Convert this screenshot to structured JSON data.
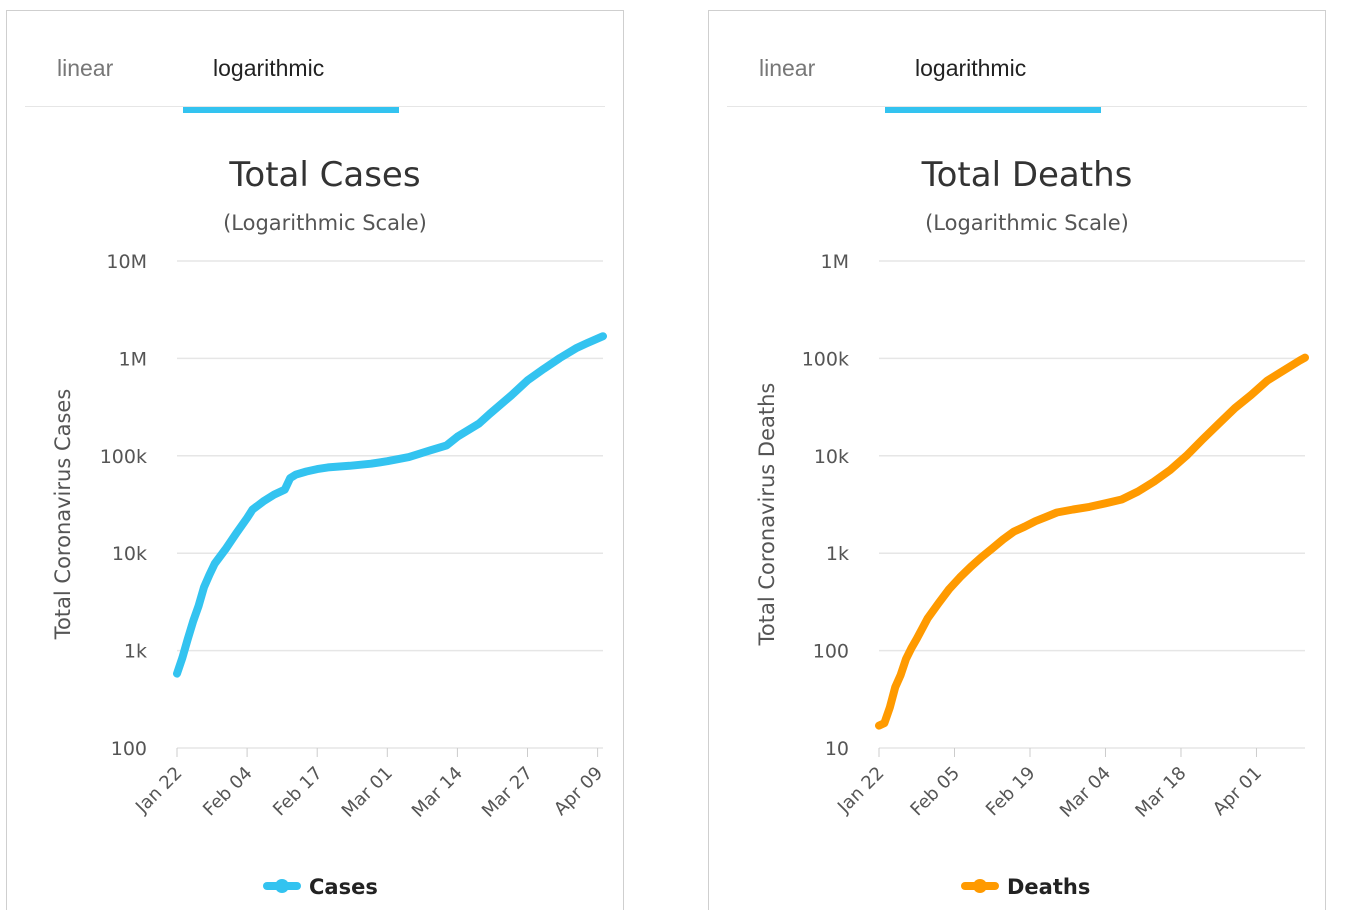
{
  "tabs": {
    "linear_label": "linear",
    "log_label": "logarithmic",
    "accent": "#33c3f0"
  },
  "chart_data": [
    {
      "type": "line",
      "title": "Total Cases",
      "subtitle": "(Logarithmic Scale)",
      "ylabel": "Total Coronavirus Cases",
      "scale": "log",
      "ylim": [
        100,
        10000000
      ],
      "yticks": [
        100,
        1000,
        10000,
        100000,
        1000000,
        10000000
      ],
      "ytick_labels": [
        "100",
        "1k",
        "10k",
        "100k",
        "1M",
        "10M"
      ],
      "xlim": [
        "2020-01-22",
        "2020-04-10"
      ],
      "xtick_labels": [
        "Jan 22",
        "Feb 04",
        "Feb 17",
        "Mar 01",
        "Mar 14",
        "Mar 27",
        "Apr 09"
      ],
      "xtick_dates": [
        "2020-01-22",
        "2020-02-04",
        "2020-02-17",
        "2020-03-01",
        "2020-03-14",
        "2020-03-27",
        "2020-04-09"
      ],
      "grid": true,
      "legend": "bottom-center",
      "series": [
        {
          "name": "Cases",
          "color": "#33c3f0",
          "points": [
            [
              "2020-01-22",
              580
            ],
            [
              "2020-01-23",
              845
            ],
            [
              "2020-01-24",
              1320
            ],
            [
              "2020-01-25",
              2010
            ],
            [
              "2020-01-26",
              2880
            ],
            [
              "2020-01-27",
              4480
            ],
            [
              "2020-01-28",
              6000
            ],
            [
              "2020-01-29",
              7800
            ],
            [
              "2020-01-31",
              11000
            ],
            [
              "2020-02-02",
              16000
            ],
            [
              "2020-02-04",
              23000
            ],
            [
              "2020-02-05",
              28000
            ],
            [
              "2020-02-07",
              34000
            ],
            [
              "2020-02-09",
              40000
            ],
            [
              "2020-02-11",
              45000
            ],
            [
              "2020-02-12",
              59000
            ],
            [
              "2020-02-13",
              64000
            ],
            [
              "2020-02-15",
              69000
            ],
            [
              "2020-02-17",
              73000
            ],
            [
              "2020-02-19",
              76000
            ],
            [
              "2020-02-23",
              79000
            ],
            [
              "2020-02-27",
              83000
            ],
            [
              "2020-03-01",
              88000
            ],
            [
              "2020-03-05",
              97000
            ],
            [
              "2020-03-09",
              114000
            ],
            [
              "2020-03-12",
              128000
            ],
            [
              "2020-03-14",
              157000
            ],
            [
              "2020-03-18",
              214000
            ],
            [
              "2020-03-20",
              270000
            ],
            [
              "2020-03-24",
              417000
            ],
            [
              "2020-03-27",
              594000
            ],
            [
              "2020-03-30",
              780000
            ],
            [
              "2020-04-02",
              1010000
            ],
            [
              "2020-04-05",
              1270000
            ],
            [
              "2020-04-07",
              1430000
            ],
            [
              "2020-04-10",
              1690000
            ]
          ]
        }
      ]
    },
    {
      "type": "line",
      "title": "Total Deaths",
      "subtitle": "(Logarithmic Scale)",
      "ylabel": "Total Coronavirus Deaths",
      "scale": "log",
      "ylim": [
        10,
        1000000
      ],
      "yticks": [
        10,
        100,
        1000,
        10000,
        100000,
        1000000
      ],
      "ytick_labels": [
        "10",
        "100",
        "1k",
        "10k",
        "100k",
        "1M"
      ],
      "xlim": [
        "2020-01-22",
        "2020-04-10"
      ],
      "xtick_labels": [
        "Jan 22",
        "Feb 05",
        "Feb 19",
        "Mar 04",
        "Mar 18",
        "Apr 01"
      ],
      "xtick_dates": [
        "2020-01-22",
        "2020-02-05",
        "2020-02-19",
        "2020-03-04",
        "2020-03-18",
        "2020-04-01"
      ],
      "grid": true,
      "legend": "bottom-center",
      "series": [
        {
          "name": "Deaths",
          "color": "#ff9a00",
          "points": [
            [
              "2020-01-22",
              17
            ],
            [
              "2020-01-23",
              18
            ],
            [
              "2020-01-24",
              26
            ],
            [
              "2020-01-25",
              42
            ],
            [
              "2020-01-26",
              56
            ],
            [
              "2020-01-27",
              82
            ],
            [
              "2020-01-28",
              106
            ],
            [
              "2020-01-29",
              132
            ],
            [
              "2020-01-31",
              213
            ],
            [
              "2020-02-02",
              304
            ],
            [
              "2020-02-04",
              427
            ],
            [
              "2020-02-06",
              564
            ],
            [
              "2020-02-08",
              724
            ],
            [
              "2020-02-10",
              910
            ],
            [
              "2020-02-12",
              1118
            ],
            [
              "2020-02-14",
              1383
            ],
            [
              "2020-02-16",
              1666
            ],
            [
              "2020-02-18",
              1873
            ],
            [
              "2020-02-20",
              2130
            ],
            [
              "2020-02-22",
              2360
            ],
            [
              "2020-02-24",
              2620
            ],
            [
              "2020-02-27",
              2810
            ],
            [
              "2020-03-01",
              2990
            ],
            [
              "2020-03-04",
              3250
            ],
            [
              "2020-03-07",
              3560
            ],
            [
              "2020-03-10",
              4290
            ],
            [
              "2020-03-13",
              5430
            ],
            [
              "2020-03-16",
              7140
            ],
            [
              "2020-03-19",
              10000
            ],
            [
              "2020-03-22",
              14700
            ],
            [
              "2020-03-25",
              21300
            ],
            [
              "2020-03-28",
              30900
            ],
            [
              "2020-03-31",
              42100
            ],
            [
              "2020-04-03",
              59200
            ],
            [
              "2020-04-06",
              75000
            ],
            [
              "2020-04-09",
              95000
            ],
            [
              "2020-04-10",
              102000
            ]
          ]
        }
      ]
    }
  ]
}
